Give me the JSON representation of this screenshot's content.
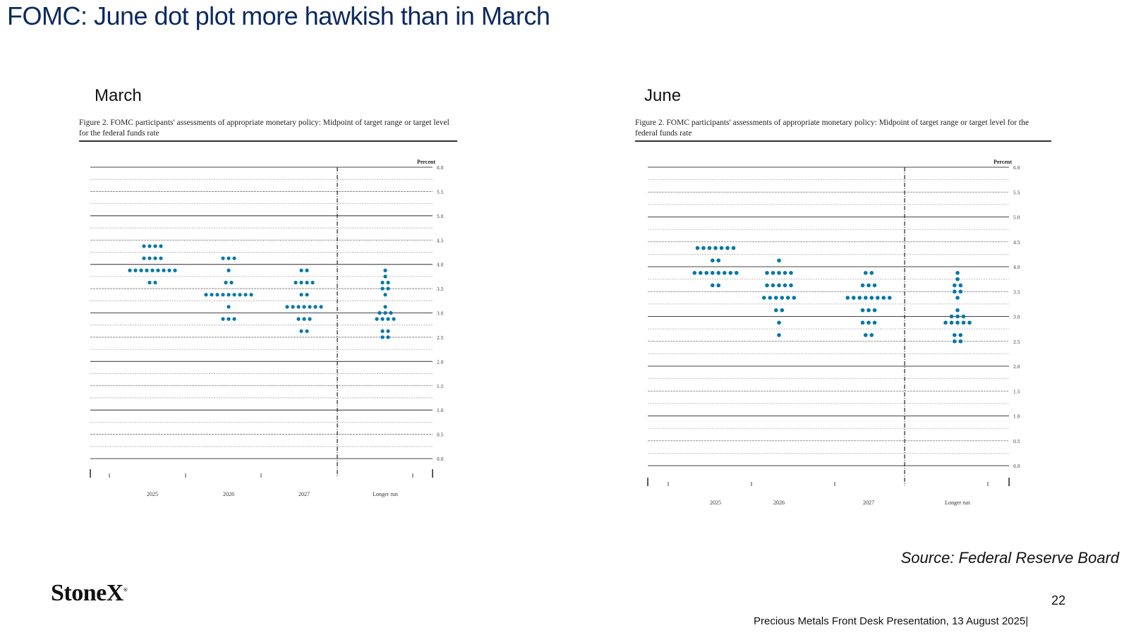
{
  "slide": {
    "title": "FOMC: June dot plot more hawkish than in March",
    "source": "Source: Federal Reserve Board",
    "logo": "StoneX",
    "logo_mark": "®",
    "page_number": "22",
    "footer": "Precious Metals Front Desk Presentation, 13 August 2025|"
  },
  "chart_data": [
    {
      "type": "scatter",
      "panel_label": "March",
      "title": "Figure 2.  FOMC participants' assessments of appropriate monetary policy:  Midpoint of target range or target level for the federal funds rate",
      "unit_label": "Percent",
      "categories": [
        "2025",
        "2026",
        "2027",
        "Longer run"
      ],
      "ylim": [
        0,
        6
      ],
      "y_ticks": [
        "0.0",
        "0.5",
        "1.0",
        "1.5",
        "2.0",
        "2.5",
        "3.0",
        "3.5",
        "4.0",
        "4.5",
        "5.0",
        "5.5",
        "6.0"
      ],
      "dot_color": "#0077a8",
      "dots": {
        "2025": [
          {
            "y": 4.375,
            "count": 4
          },
          {
            "y": 4.125,
            "count": 4
          },
          {
            "y": 3.875,
            "count": 9
          },
          {
            "y": 3.625,
            "count": 2
          }
        ],
        "2026": [
          {
            "y": 4.125,
            "count": 3
          },
          {
            "y": 3.875,
            "count": 1
          },
          {
            "y": 3.625,
            "count": 2
          },
          {
            "y": 3.375,
            "count": 9
          },
          {
            "y": 3.125,
            "count": 1
          },
          {
            "y": 2.875,
            "count": 3
          }
        ],
        "2027": [
          {
            "y": 3.875,
            "count": 2
          },
          {
            "y": 3.625,
            "count": 4
          },
          {
            "y": 3.375,
            "count": 2
          },
          {
            "y": 3.125,
            "count": 7
          },
          {
            "y": 2.875,
            "count": 3
          },
          {
            "y": 2.625,
            "count": 2
          }
        ],
        "Longer run": [
          {
            "y": 3.875,
            "count": 1
          },
          {
            "y": 3.75,
            "count": 1
          },
          {
            "y": 3.625,
            "count": 2
          },
          {
            "y": 3.5,
            "count": 2
          },
          {
            "y": 3.375,
            "count": 1
          },
          {
            "y": 3.125,
            "count": 1
          },
          {
            "y": 3.0,
            "count": 3
          },
          {
            "y": 2.875,
            "count": 4
          },
          {
            "y": 2.625,
            "count": 2
          },
          {
            "y": 2.5,
            "count": 2
          }
        ]
      }
    },
    {
      "type": "scatter",
      "panel_label": "June",
      "title": "Figure 2.  FOMC participants' assessments of appropriate monetary policy:  Midpoint of target range or target level for the federal funds rate",
      "unit_label": "Percent",
      "categories": [
        "2025",
        "2026",
        "2027",
        "Longer run"
      ],
      "ylim": [
        0,
        6
      ],
      "y_ticks": [
        "0.0",
        "0.5",
        "1.0",
        "1.5",
        "2.0",
        "2.5",
        "3.0",
        "3.5",
        "4.0",
        "4.5",
        "5.0",
        "5.5",
        "6.0"
      ],
      "dot_color": "#0077a8",
      "dots": {
        "2025": [
          {
            "y": 4.375,
            "count": 7
          },
          {
            "y": 4.125,
            "count": 2
          },
          {
            "y": 3.875,
            "count": 8
          },
          {
            "y": 3.625,
            "count": 2
          }
        ],
        "2026": [
          {
            "y": 4.125,
            "count": 1
          },
          {
            "y": 3.875,
            "count": 5
          },
          {
            "y": 3.625,
            "count": 5
          },
          {
            "y": 3.375,
            "count": 6
          },
          {
            "y": 3.125,
            "count": 2
          },
          {
            "y": 2.875,
            "count": 1
          },
          {
            "y": 2.625,
            "count": 1
          }
        ],
        "2027": [
          {
            "y": 3.875,
            "count": 2
          },
          {
            "y": 3.625,
            "count": 3
          },
          {
            "y": 3.375,
            "count": 8
          },
          {
            "y": 3.125,
            "count": 3
          },
          {
            "y": 2.875,
            "count": 3
          },
          {
            "y": 2.625,
            "count": 2
          }
        ],
        "Longer run": [
          {
            "y": 3.875,
            "count": 1
          },
          {
            "y": 3.75,
            "count": 1
          },
          {
            "y": 3.625,
            "count": 2
          },
          {
            "y": 3.5,
            "count": 2
          },
          {
            "y": 3.375,
            "count": 1
          },
          {
            "y": 3.125,
            "count": 1
          },
          {
            "y": 3.0,
            "count": 3
          },
          {
            "y": 2.875,
            "count": 5
          },
          {
            "y": 2.625,
            "count": 2
          },
          {
            "y": 2.5,
            "count": 2
          }
        ]
      }
    }
  ]
}
